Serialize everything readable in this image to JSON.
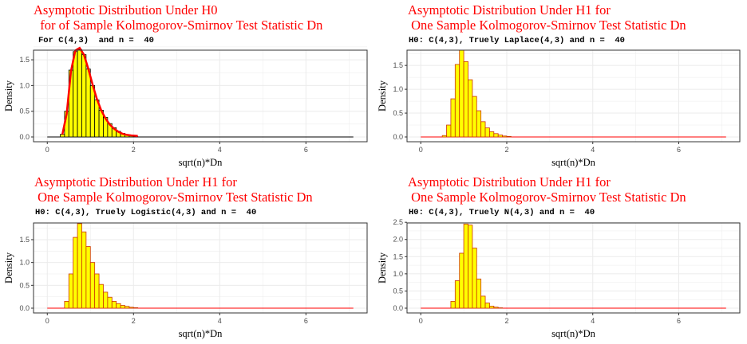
{
  "colors": {
    "bar_fill": "#ffff00",
    "curve": "#ff0000",
    "text_title": "#ff0000",
    "grid": "#ebebeb"
  },
  "panels": [
    {
      "title1": "Asymptotic Distribution Under H0",
      "title2": "  for of Sample Kolmogorov-Smirnov Test Statistic Dn",
      "subtitle": "For C(4,3)  and n =  40"
    },
    {
      "title1": "Asymptotic Distribution Under H1 for",
      "title2": " One Sample Kolmogorov-Smirnov Test Statistic Dn",
      "subtitle": "H0: C(4,3), Truely Laplace(4,3) and n =  40"
    },
    {
      "title1": "Asymptotic Distribution Under H1 for",
      "title2": " One Sample Kolmogorov-Smirnov Test Statistic Dn",
      "subtitle": "H0: C(4,3), Truely Logistic(4,3) and n =  40"
    },
    {
      "title1": "Asymptotic Distribution Under H1 for",
      "title2": " One Sample Kolmogorov-Smirnov Test Statistic Dn",
      "subtitle": "H0: C(4,3), Truely N(4,3) and n =  40"
    }
  ],
  "chart_data": [
    {
      "type": "bar",
      "xlabel": "sqrt(n)*Dn",
      "ylabel": "Density",
      "xlim": [
        0,
        7.1
      ],
      "ylim": [
        0,
        1.78
      ],
      "xticks": [
        0,
        2,
        4,
        6
      ],
      "yticks": [
        0.0,
        0.5,
        1.0,
        1.5
      ],
      "grid": true,
      "bin_width": 0.1,
      "bins_x": [
        0.35,
        0.45,
        0.55,
        0.65,
        0.75,
        0.85,
        0.95,
        1.05,
        1.15,
        1.25,
        1.35,
        1.45,
        1.55,
        1.65,
        1.75,
        1.85,
        1.95,
        2.05
      ],
      "values": [
        0.05,
        0.5,
        1.3,
        1.66,
        1.7,
        1.6,
        1.32,
        1.0,
        0.72,
        0.52,
        0.38,
        0.26,
        0.18,
        0.11,
        0.07,
        0.04,
        0.02,
        0.01
      ],
      "curve": {
        "x": [
          0.35,
          0.45,
          0.55,
          0.65,
          0.75,
          0.85,
          0.95,
          1.05,
          1.15,
          1.25,
          1.35,
          1.45,
          1.55,
          1.65,
          1.75,
          1.85,
          1.95,
          2.1
        ],
        "y": [
          0.05,
          0.45,
          1.28,
          1.68,
          1.73,
          1.6,
          1.33,
          1.02,
          0.74,
          0.52,
          0.36,
          0.24,
          0.16,
          0.1,
          0.06,
          0.04,
          0.03,
          0.02
        ]
      },
      "baseline": [
        0,
        7.1
      ]
    },
    {
      "type": "bar",
      "xlabel": "sqrt(n)*Dn",
      "ylabel": "Density",
      "xlim": [
        0,
        7.1
      ],
      "ylim": [
        0,
        1.92
      ],
      "xticks": [
        0,
        2,
        4,
        6
      ],
      "yticks": [
        0.0,
        0.5,
        1.0,
        1.5
      ],
      "grid": true,
      "bin_width": 0.1,
      "bins_x": [
        0.55,
        0.65,
        0.75,
        0.85,
        0.95,
        1.05,
        1.15,
        1.25,
        1.35,
        1.45,
        1.55,
        1.65,
        1.75,
        1.85,
        1.95,
        2.05
      ],
      "values": [
        0.03,
        0.25,
        0.8,
        1.52,
        1.82,
        1.58,
        1.2,
        0.85,
        0.55,
        0.32,
        0.19,
        0.11,
        0.07,
        0.04,
        0.02,
        0.01
      ],
      "baseline": [
        0,
        7.1
      ]
    },
    {
      "type": "bar",
      "xlabel": "sqrt(n)*Dn",
      "ylabel": "Density",
      "xlim": [
        0,
        7.1
      ],
      "ylim": [
        0,
        1.97
      ],
      "xticks": [
        0,
        2,
        4,
        6
      ],
      "yticks": [
        0.0,
        0.5,
        1.0,
        1.5
      ],
      "grid": true,
      "bin_width": 0.1,
      "bins_x": [
        0.45,
        0.55,
        0.65,
        0.75,
        0.85,
        0.95,
        1.05,
        1.15,
        1.25,
        1.35,
        1.45,
        1.55,
        1.65,
        1.75,
        1.85,
        1.95,
        2.05
      ],
      "values": [
        0.15,
        0.75,
        1.55,
        1.85,
        1.67,
        1.35,
        1.0,
        0.75,
        0.52,
        0.35,
        0.24,
        0.15,
        0.1,
        0.06,
        0.04,
        0.02,
        0.01
      ],
      "baseline": [
        0,
        7.1
      ]
    },
    {
      "type": "bar",
      "xlabel": "sqrt(n)*Dn",
      "ylabel": "Density",
      "xlim": [
        0,
        7.1
      ],
      "ylim": [
        0,
        2.62
      ],
      "xticks": [
        0,
        2,
        4,
        6
      ],
      "yticks": [
        0.0,
        0.5,
        1.0,
        1.5,
        2.0,
        2.5
      ],
      "grid": true,
      "bin_width": 0.1,
      "bins_x": [
        0.75,
        0.85,
        0.95,
        1.05,
        1.15,
        1.25,
        1.35,
        1.45,
        1.55,
        1.65,
        1.75,
        1.85
      ],
      "values": [
        0.2,
        0.8,
        1.6,
        2.45,
        2.42,
        1.75,
        0.85,
        0.35,
        0.15,
        0.06,
        0.03,
        0.01
      ],
      "baseline": [
        0,
        7.1
      ]
    }
  ]
}
